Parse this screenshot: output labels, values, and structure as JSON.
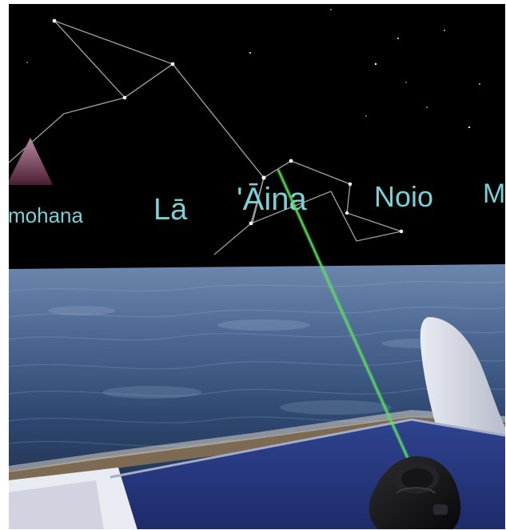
{
  "scene": {
    "title": "",
    "sky": {
      "star_labels": [
        {
          "text": "mohana"
        },
        {
          "text": "Lā"
        },
        {
          "text": "'Āina"
        },
        {
          "text": "Noio"
        },
        {
          "text": "M"
        }
      ],
      "colors": {
        "sky": "#000000",
        "constellation_line": "#9a9a9a",
        "star": "#f4f4f4",
        "label": "#7bd0d6"
      }
    },
    "ocean": {
      "colors": {
        "top": "#5f7ba4",
        "bottom": "#1f2e47"
      }
    },
    "pointer": {
      "color": "#3ad13a"
    },
    "controller": {
      "color": "#1b1b1d"
    },
    "deck": {
      "surface_color": "#2c3f8d",
      "rail_color": "#f3f3f7"
    }
  }
}
